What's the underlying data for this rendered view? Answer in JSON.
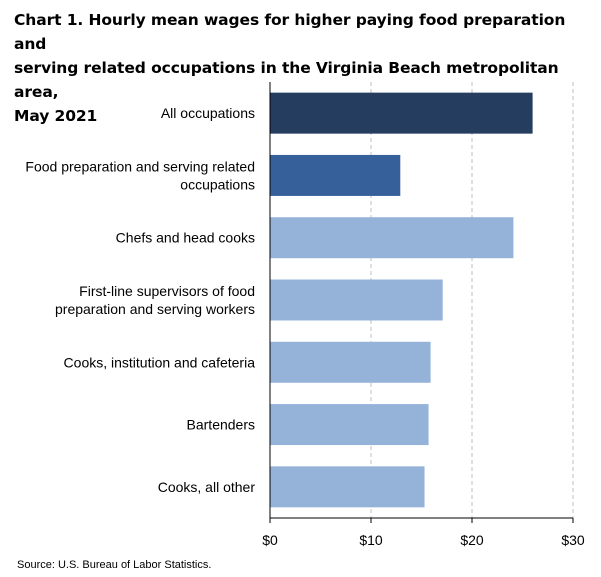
{
  "chart_data": {
    "type": "bar",
    "orientation": "horizontal",
    "title_lines": [
      "Chart 1. Hourly mean wages for higher paying food preparation and",
      "serving related occupations in the Virginia Beach metropolitan area,",
      "May 2021"
    ],
    "categories": [
      [
        "All occupations"
      ],
      [
        "Food preparation and serving related",
        "occupations"
      ],
      [
        "Chefs and head cooks"
      ],
      [
        "First-line supervisors of food",
        "preparation and serving workers"
      ],
      [
        "Cooks, institution and cafeteria"
      ],
      [
        "Bartenders"
      ],
      [
        "Cooks, all other"
      ]
    ],
    "values": [
      26.0,
      12.9,
      24.1,
      17.1,
      15.9,
      15.7,
      15.3
    ],
    "bar_colors": [
      "#253d5f",
      "#35609a",
      "#95b3d9",
      "#95b3d9",
      "#95b3d9",
      "#95b3d9",
      "#95b3d9"
    ],
    "xlim": [
      0,
      30
    ],
    "x_ticks": [
      0,
      10,
      20,
      30
    ],
    "x_tick_labels": [
      "$0",
      "$10",
      "$20",
      "$30"
    ],
    "grid": "vertical dashed",
    "source": "Source: U.S. Bureau of Labor Statistics."
  }
}
